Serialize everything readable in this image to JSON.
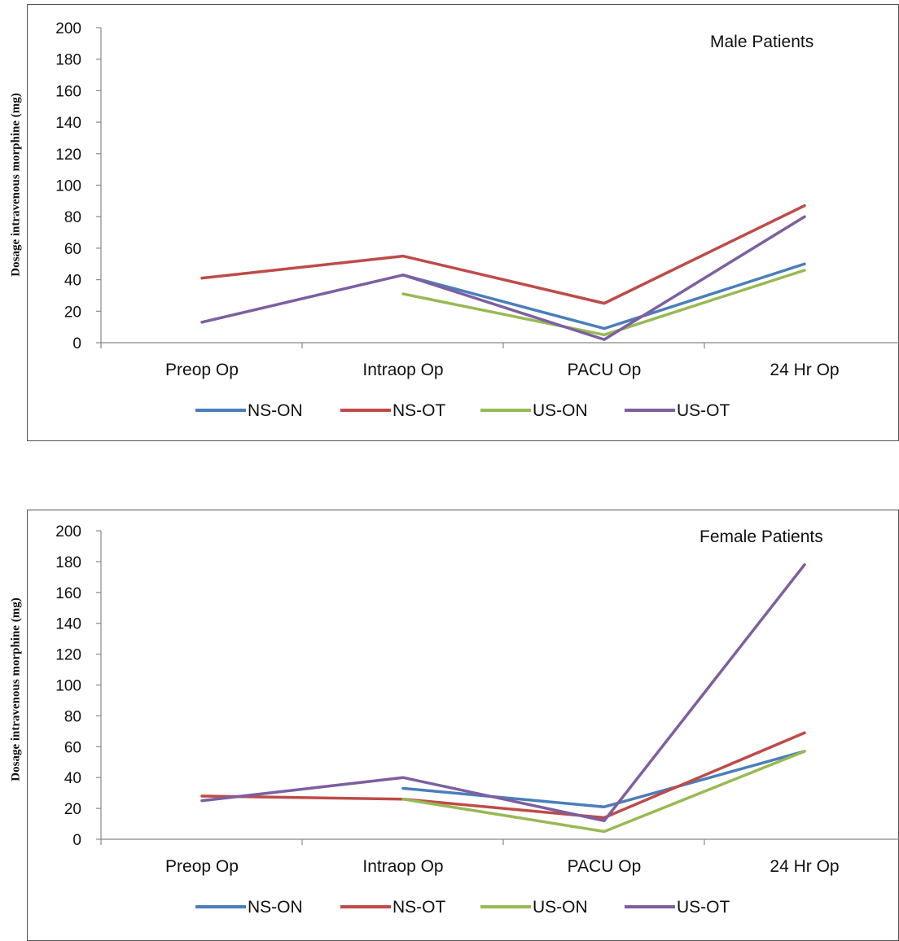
{
  "colors": {
    "NS-ON": "#4a7ebb",
    "NS-OT": "#be4b48",
    "US-ON": "#98b954",
    "US-OT": "#7d5fa0"
  },
  "chart_data": [
    {
      "type": "line",
      "title": "Male Patients",
      "xlabel": "",
      "ylabel": "Dosage intravenous morphine (mg)",
      "categories": [
        "Preop Op",
        "Intraop Op",
        "PACU Op",
        "24 Hr Op"
      ],
      "ylim": [
        0,
        200
      ],
      "yticks": [
        0,
        20,
        40,
        60,
        80,
        100,
        120,
        140,
        160,
        180,
        200
      ],
      "grid": false,
      "legend_position": "bottom",
      "series": [
        {
          "name": "NS-ON",
          "values": [
            null,
            43,
            9,
            50
          ]
        },
        {
          "name": "NS-OT",
          "values": [
            41,
            55,
            25,
            87
          ]
        },
        {
          "name": "US-ON",
          "values": [
            null,
            31,
            5,
            46
          ]
        },
        {
          "name": "US-OT",
          "values": [
            13,
            43,
            2,
            80
          ]
        }
      ]
    },
    {
      "type": "line",
      "title": "Female Patients",
      "xlabel": "",
      "ylabel": "Dosage intravenous morphine (mg)",
      "categories": [
        "Preop Op",
        "Intraop Op",
        "PACU Op",
        "24 Hr Op"
      ],
      "ylim": [
        0,
        200
      ],
      "yticks": [
        0,
        20,
        40,
        60,
        80,
        100,
        120,
        140,
        160,
        180,
        200
      ],
      "grid": false,
      "legend_position": "bottom",
      "series": [
        {
          "name": "NS-ON",
          "values": [
            null,
            33,
            21,
            57
          ]
        },
        {
          "name": "NS-OT",
          "values": [
            28,
            26,
            14,
            69
          ]
        },
        {
          "name": "US-ON",
          "values": [
            null,
            26,
            5,
            57
          ]
        },
        {
          "name": "US-OT",
          "values": [
            25,
            40,
            12,
            178
          ]
        }
      ]
    }
  ]
}
